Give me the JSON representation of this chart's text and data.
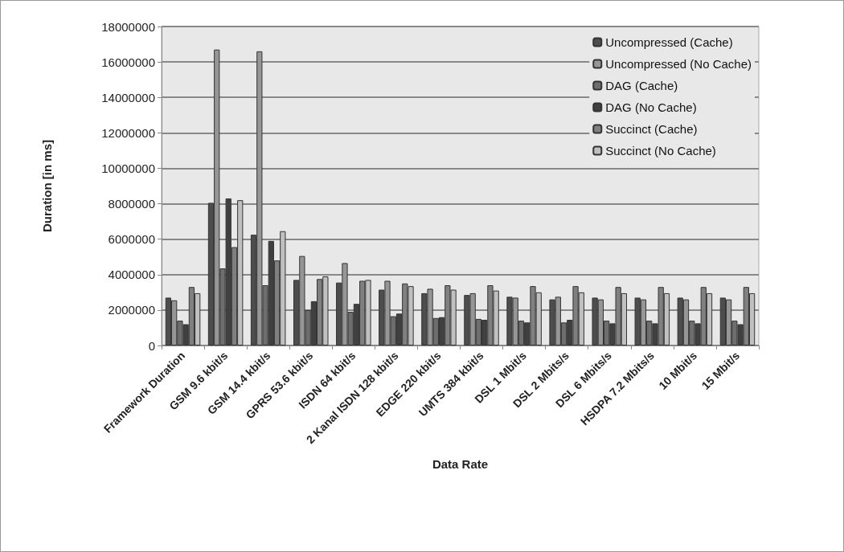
{
  "chart_data": {
    "type": "bar",
    "xlabel": "Data Rate",
    "ylabel": "Duration [in ms]",
    "categories": [
      "Framework Duration",
      "GSM 9.6 kbit/s",
      "GSM 14.4 kbit/s",
      "GPRS 53.6 kbit/s",
      "ISDN 64 kbit/s",
      "2 Kanal ISDN 128 kbit/s",
      "EDGE 220 kbit/s",
      "UMTS 384 kbit/s",
      "DSL 1 Mbit/s",
      "DSL 2 Mbits/s",
      "DSL 6 Mbits/s",
      "HSDPA 7.2 Mbits/s",
      "10 Mbit/s",
      "15 Mbit/s"
    ],
    "series": [
      {
        "name": "Uncompressed (Cache)",
        "color": "#4d4d4d",
        "values": [
          2700000,
          8050000,
          6250000,
          3700000,
          3550000,
          3150000,
          2950000,
          2850000,
          2750000,
          2600000,
          2700000,
          2700000,
          2700000,
          2700000
        ]
      },
      {
        "name": "Uncompressed (No Cache)",
        "color": "#969696",
        "values": [
          2550000,
          16700000,
          16600000,
          5050000,
          4650000,
          3650000,
          3200000,
          2950000,
          2700000,
          2750000,
          2600000,
          2600000,
          2600000,
          2600000
        ]
      },
      {
        "name": "DAG (Cache)",
        "color": "#6e6e6e",
        "values": [
          1400000,
          4350000,
          3400000,
          2000000,
          1900000,
          1650000,
          1550000,
          1500000,
          1400000,
          1300000,
          1400000,
          1400000,
          1400000,
          1400000
        ]
      },
      {
        "name": "DAG (No Cache)",
        "color": "#404040",
        "values": [
          1200000,
          8300000,
          5900000,
          2500000,
          2350000,
          1800000,
          1600000,
          1450000,
          1300000,
          1450000,
          1250000,
          1250000,
          1250000,
          1200000
        ]
      },
      {
        "name": "Succinct (Cache)",
        "color": "#808080",
        "values": [
          3300000,
          5550000,
          4800000,
          3750000,
          3650000,
          3500000,
          3400000,
          3400000,
          3350000,
          3350000,
          3300000,
          3300000,
          3300000,
          3300000
        ]
      },
      {
        "name": "Succinct (No Cache)",
        "color": "#c0c0c0",
        "values": [
          2950000,
          8200000,
          6450000,
          3900000,
          3700000,
          3350000,
          3150000,
          3100000,
          3000000,
          3000000,
          2950000,
          2950000,
          2950000,
          2950000
        ]
      }
    ],
    "ylim": [
      0,
      18000000
    ],
    "yticks": [
      0,
      2000000,
      4000000,
      6000000,
      8000000,
      10000000,
      12000000,
      14000000,
      16000000,
      18000000
    ],
    "grid": "y",
    "legend": "top right"
  }
}
